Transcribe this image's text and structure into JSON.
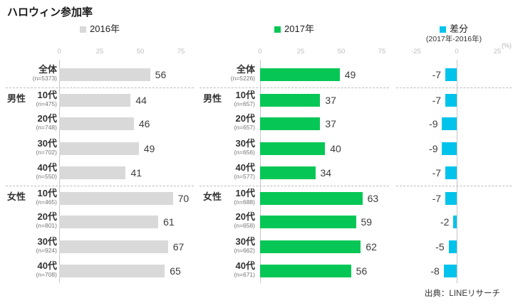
{
  "title": "ハロウィン参加率",
  "source": "出典：LINEリサーチ",
  "colors": {
    "bar_2016": "#d9d9d9",
    "bar_2017": "#06c755",
    "bar_diff": "#00c3eb",
    "axis_line": "#c6c6c6",
    "tick_text": "#bdbdbd",
    "label_text": "#333333",
    "n_text": "#757575",
    "value_text": "#3d3d3d"
  },
  "chart_data": [
    {
      "type": "bar",
      "title": "2016年",
      "orientation": "horizontal",
      "ticks": [
        0,
        25,
        50,
        75
      ],
      "xlim": [
        0,
        81
      ],
      "categories": [
        "全体",
        "10代",
        "20代",
        "30代",
        "40代",
        "10代",
        "20代",
        "30代",
        "40代"
      ],
      "groups": [
        {
          "label": "男性",
          "start": 1
        },
        {
          "label": "女性",
          "start": 5
        }
      ],
      "separators_before": [
        1,
        5
      ],
      "n_labels": [
        "(n=5373)",
        "(n=475)",
        "(n=748)",
        "(n=702)",
        "(n=550)",
        "(n=465)",
        "(n=801)",
        "(n=924)",
        "(n=708)"
      ],
      "values": [
        56,
        44,
        46,
        49,
        41,
        70,
        61,
        67,
        65
      ]
    },
    {
      "type": "bar",
      "title": "2017年",
      "orientation": "horizontal",
      "ticks": [
        0,
        25,
        50,
        75
      ],
      "xlim": [
        0,
        81
      ],
      "categories": [
        "全体",
        "10代",
        "20代",
        "30代",
        "40代",
        "10代",
        "20代",
        "30代",
        "40代"
      ],
      "groups": [
        {
          "label": "男性",
          "start": 1
        },
        {
          "label": "女性",
          "start": 5
        }
      ],
      "separators_before": [
        1,
        5
      ],
      "n_labels": [
        "(n=5226)",
        "(n=657)",
        "(n=657)",
        "(n=656)",
        "(n=577)",
        "(n=688)",
        "(n=658)",
        "(n=662)",
        "(n=671)"
      ],
      "values": [
        49,
        37,
        37,
        40,
        34,
        63,
        59,
        62,
        56
      ]
    },
    {
      "type": "bar",
      "title": "差分",
      "subtitle": "(2017年-2016年)",
      "unit": "(%)",
      "orientation": "horizontal",
      "ticks": [
        -25,
        0,
        25
      ],
      "xlim": [
        -34,
        34
      ],
      "separators_before": [
        1,
        5
      ],
      "values": [
        -7,
        -7,
        -9,
        -9,
        -7,
        -7,
        -2,
        -5,
        -8
      ]
    }
  ]
}
